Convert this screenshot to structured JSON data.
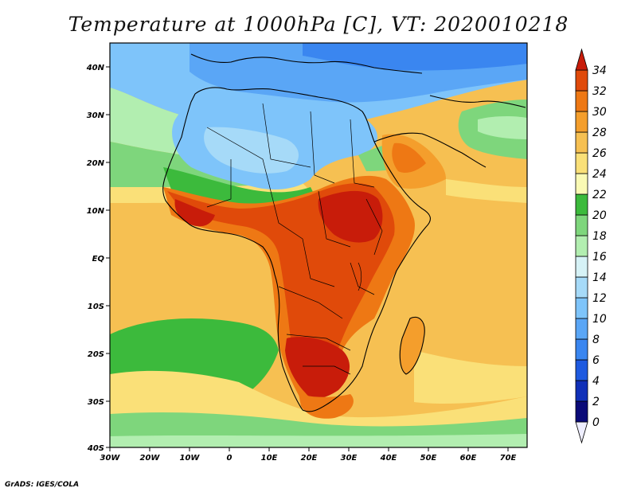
{
  "title": "Temperature at 1000hPa [C], VT: 2020010218",
  "credit": "GrADS: IGES/COLA",
  "map": {
    "lon_range": [
      -30,
      75
    ],
    "lat_range": [
      -40,
      45
    ],
    "x_ticks": [
      "30W",
      "20W",
      "10W",
      "0",
      "10E",
      "20E",
      "30E",
      "40E",
      "50E",
      "60E",
      "70E"
    ],
    "y_ticks": [
      "40N",
      "30N",
      "20N",
      "10N",
      "EQ",
      "10S",
      "20S",
      "30S",
      "40S"
    ]
  },
  "colorbar": {
    "levels": [
      "0",
      "2",
      "4",
      "6",
      "8",
      "10",
      "12",
      "14",
      "16",
      "18",
      "20",
      "22",
      "24",
      "26",
      "28",
      "30",
      "32",
      "34"
    ],
    "colors": [
      "#eeeeff",
      "#0a0a78",
      "#1030b8",
      "#1e5ae0",
      "#3a86f0",
      "#5aa6f6",
      "#7ec4fa",
      "#a6daf8",
      "#d6f2f6",
      "#b2eeb0",
      "#7ed67c",
      "#3cba3c",
      "#fafab4",
      "#fae078",
      "#f6c052",
      "#f49e2c",
      "#ee7814",
      "#e04a0a",
      "#c81c0a"
    ]
  }
}
